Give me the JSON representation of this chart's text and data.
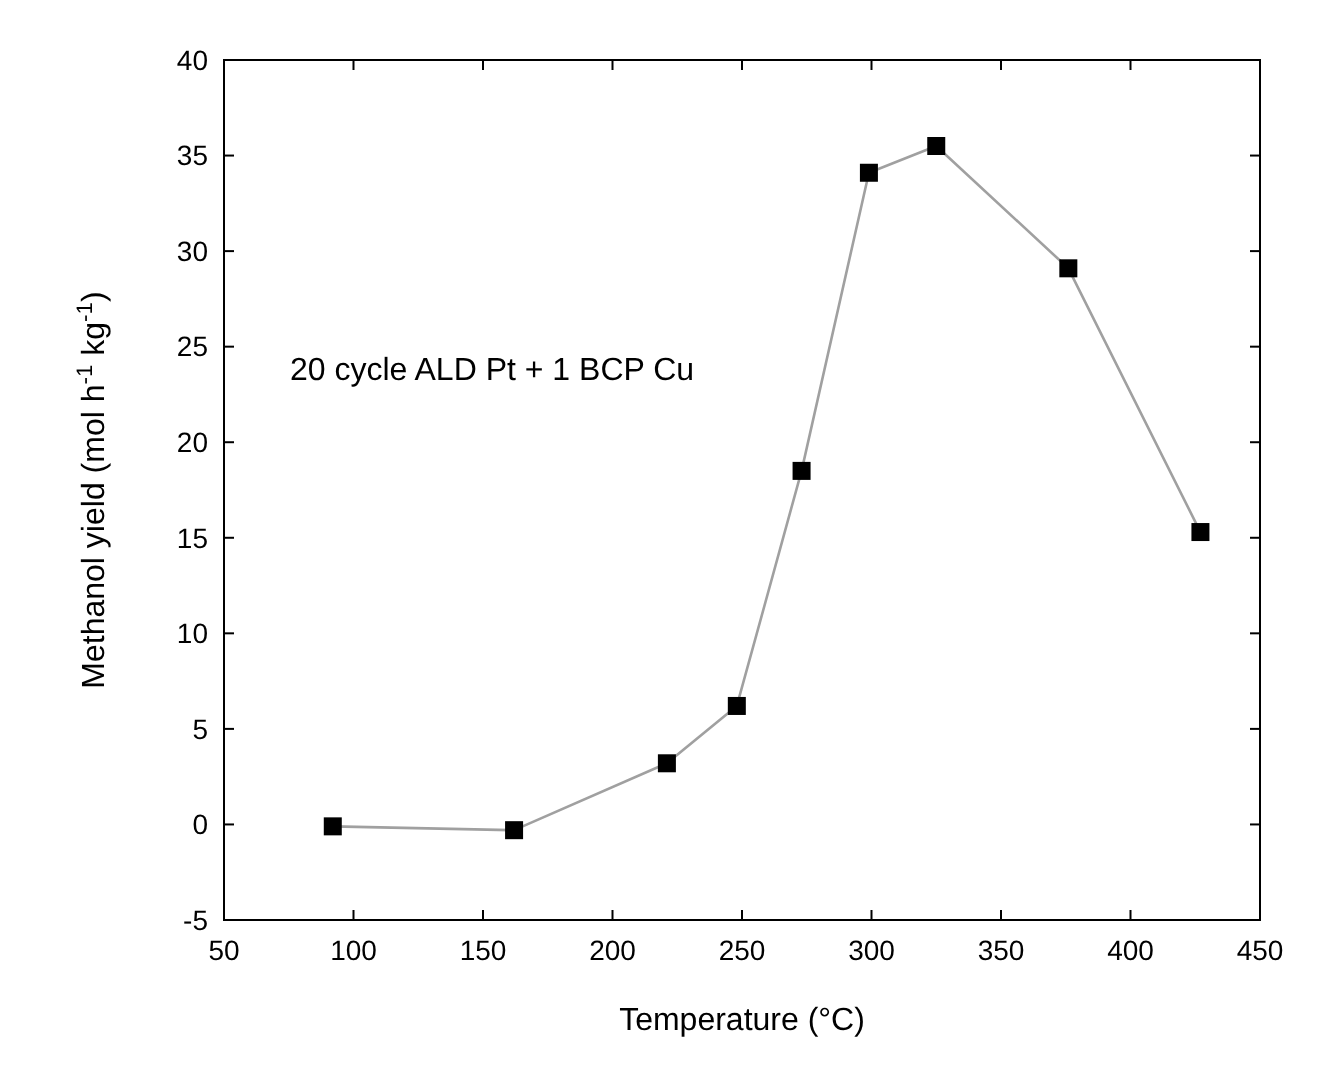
{
  "chart_data": {
    "type": "line",
    "xlabel": "Temperature (°C)",
    "ylabel": "Methanol yield (mol h$^{-1}$ kg$^{-1}$)",
    "x": [
      92,
      162,
      221,
      248,
      273,
      299,
      325,
      376,
      427
    ],
    "series": [
      {
        "color": "#000000",
        "values": [
          -0.1,
          -0.3,
          3.2,
          6.2,
          18.5,
          34.1,
          35.5,
          29.1,
          15.3
        ]
      }
    ],
    "xlim": [
      50,
      450
    ],
    "xticks": [
      50,
      100,
      150,
      200,
      250,
      300,
      350,
      400,
      450
    ],
    "ylim": [
      -5,
      40
    ],
    "yticks": [
      -5,
      0,
      5,
      10,
      15,
      20,
      25,
      30,
      35,
      40
    ],
    "annotations": [
      "20 cycle ALD Pt + 1 BCP Cu"
    ],
    "marker": "square",
    "line_style": "solid"
  }
}
